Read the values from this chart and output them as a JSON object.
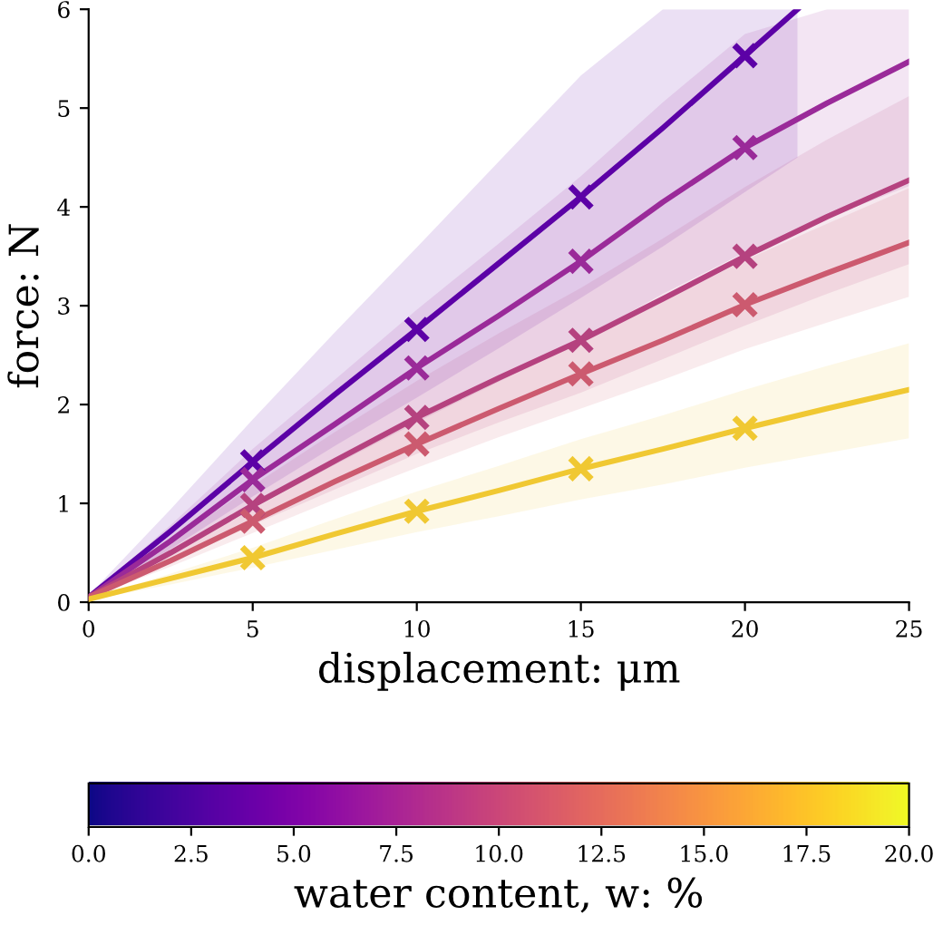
{
  "chart_data": {
    "type": "line",
    "xlabel": "displacement: μm",
    "ylabel": "force: N",
    "clabel": "water content, w: %",
    "xlim": [
      0,
      25
    ],
    "ylim": [
      0,
      6
    ],
    "xticks": [
      0,
      5,
      10,
      15,
      20,
      25
    ],
    "yticks": [
      0,
      1,
      2,
      3,
      4,
      5,
      6
    ],
    "clim": [
      0,
      20
    ],
    "cticks": [
      {
        "value": 0,
        "label": "0.0"
      },
      {
        "value": 2.5,
        "label": "2.5"
      },
      {
        "value": 5,
        "label": "5.0"
      },
      {
        "value": 7.5,
        "label": "7.5"
      },
      {
        "value": 10,
        "label": "10.0"
      },
      {
        "value": 12.5,
        "label": "12.5"
      },
      {
        "value": 15,
        "label": "15.0"
      },
      {
        "value": 17.5,
        "label": "17.5"
      },
      {
        "value": 20,
        "label": "20.0"
      }
    ],
    "grid": false,
    "legend": false,
    "line_style": "solid",
    "series": [
      {
        "color": "#5c01a6",
        "x": [
          0,
          2.5,
          5,
          7.5,
          10,
          12.5,
          15,
          17.5,
          20,
          21.6
        ],
        "values": [
          0.05,
          0.72,
          1.42,
          2.1,
          2.76,
          3.43,
          4.1,
          4.8,
          5.53,
          6.0
        ],
        "upper": [
          0.07,
          0.94,
          1.85,
          2.73,
          3.59,
          4.46,
          5.33,
          6,
          6,
          6
        ],
        "lower": [
          0.04,
          0.54,
          1.07,
          1.58,
          2.07,
          2.57,
          3.08,
          3.6,
          4.15,
          4.5
        ]
      },
      {
        "color": "#9a2a99",
        "x": [
          0,
          2.5,
          5,
          7.5,
          10,
          12.5,
          15,
          17.5,
          20,
          22.5,
          25
        ],
        "values": [
          0.05,
          0.62,
          1.24,
          1.8,
          2.37,
          2.9,
          3.45,
          4.05,
          4.6,
          5.05,
          5.47
        ],
        "upper": [
          0.06,
          0.78,
          1.55,
          2.25,
          2.96,
          3.63,
          4.31,
          5.06,
          5.75,
          6,
          6
        ],
        "lower": [
          0.04,
          0.48,
          0.95,
          1.39,
          1.82,
          2.23,
          2.66,
          3.12,
          3.54,
          3.89,
          4.21
        ]
      },
      {
        "color": "#b5427f",
        "x": [
          0,
          2.5,
          5,
          7.5,
          10,
          12.5,
          15,
          17.5,
          20,
          22.5,
          25
        ],
        "values": [
          0.05,
          0.5,
          0.98,
          1.43,
          1.87,
          2.27,
          2.65,
          3.07,
          3.5,
          3.9,
          4.27
        ],
        "upper": [
          0.06,
          0.6,
          1.18,
          1.72,
          2.24,
          2.72,
          3.18,
          3.68,
          4.2,
          4.68,
          5.12
        ],
        "lower": [
          0.04,
          0.4,
          0.78,
          1.14,
          1.5,
          1.82,
          2.12,
          2.46,
          2.8,
          3.12,
          3.42
        ]
      },
      {
        "color": "#cc5a6f",
        "x": [
          0,
          2.5,
          5,
          7.5,
          10,
          12.5,
          15,
          17.5,
          20,
          22.5,
          25
        ],
        "values": [
          0.05,
          0.42,
          0.82,
          1.22,
          1.6,
          1.96,
          2.31,
          2.65,
          3.01,
          3.33,
          3.64
        ],
        "upper": [
          0.06,
          0.48,
          0.94,
          1.4,
          1.84,
          2.25,
          2.66,
          3.05,
          3.46,
          3.83,
          4.19
        ],
        "lower": [
          0.04,
          0.36,
          0.7,
          1.04,
          1.36,
          1.67,
          1.96,
          2.25,
          2.56,
          2.83,
          3.09
        ]
      },
      {
        "color": "#f0c832",
        "x": [
          0,
          2.5,
          5,
          7.5,
          10,
          12.5,
          15,
          17.5,
          20,
          22.5,
          25
        ],
        "values": [
          0.03,
          0.24,
          0.45,
          0.69,
          0.92,
          1.13,
          1.35,
          1.55,
          1.76,
          1.96,
          2.15
        ],
        "upper": [
          0.04,
          0.29,
          0.55,
          0.84,
          1.12,
          1.38,
          1.65,
          1.89,
          2.15,
          2.39,
          2.62
        ],
        "lower": [
          0.02,
          0.18,
          0.35,
          0.53,
          0.71,
          0.87,
          1.04,
          1.19,
          1.36,
          1.51,
          1.66
        ]
      },
      {
        "type": "scatter",
        "marker": "cross",
        "color": "#5c01a6",
        "x": [
          5,
          10,
          15,
          20
        ],
        "values": [
          1.42,
          2.76,
          4.1,
          5.53
        ]
      },
      {
        "type": "scatter",
        "marker": "cross",
        "color": "#9a2a99",
        "x": [
          5,
          10,
          15,
          20
        ],
        "values": [
          1.24,
          2.37,
          3.45,
          4.6
        ]
      },
      {
        "type": "scatter",
        "marker": "cross",
        "color": "#b5427f",
        "x": [
          5,
          10,
          15,
          20
        ],
        "values": [
          0.98,
          1.87,
          2.65,
          3.5
        ]
      },
      {
        "type": "scatter",
        "marker": "cross",
        "color": "#cc5a6f",
        "x": [
          5,
          10,
          15,
          20
        ],
        "values": [
          0.82,
          1.6,
          2.31,
          3.01
        ]
      },
      {
        "type": "scatter",
        "marker": "cross",
        "color": "#f0c832",
        "x": [
          5,
          10,
          15,
          20
        ],
        "values": [
          0.45,
          0.92,
          1.35,
          1.76
        ]
      }
    ]
  }
}
